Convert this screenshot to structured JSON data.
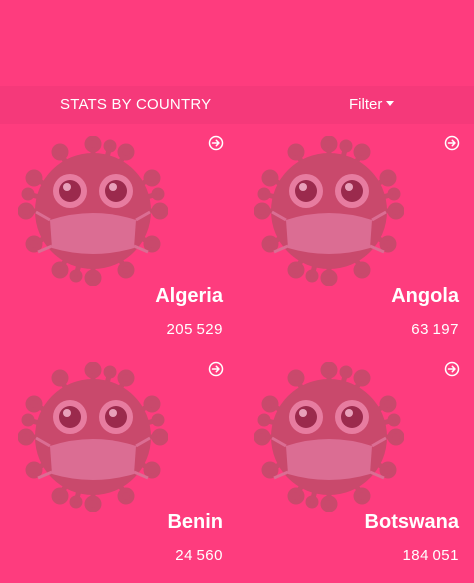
{
  "header": {
    "title": "STATS BY COUNTRY",
    "filter_label": "Filter"
  },
  "countries": [
    {
      "name": "Algeria",
      "cases": "205529"
    },
    {
      "name": "Angola",
      "cases": "63197"
    },
    {
      "name": "Benin",
      "cases": "24560"
    },
    {
      "name": "Botswana",
      "cases": "184051"
    }
  ],
  "colors": {
    "background": "#fe3c7e",
    "virus": "#c9496c",
    "text": "#ffffff"
  },
  "icons": {
    "card_arrow": "arrow-circle-right-icon",
    "filter_caret": "caret-down-icon",
    "card_image": "virus-with-mask-icon"
  }
}
